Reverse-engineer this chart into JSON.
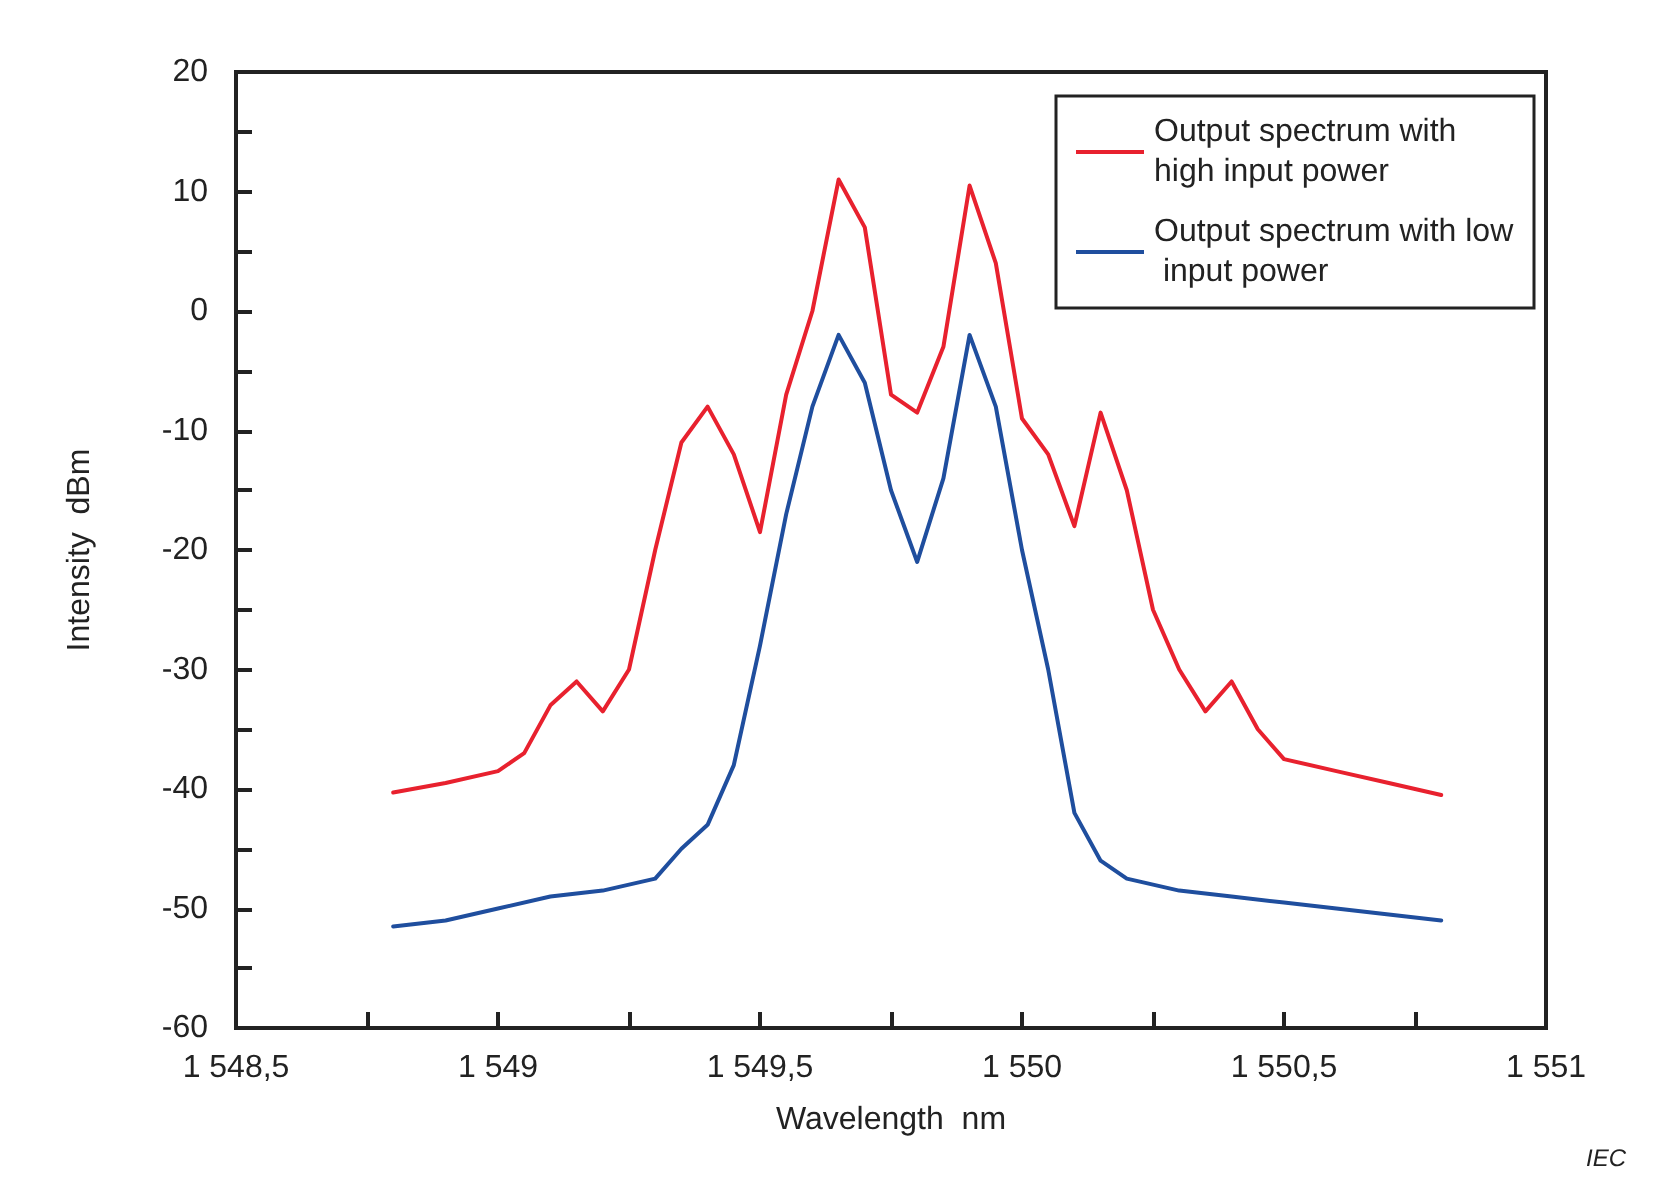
{
  "chart_data": {
    "type": "line",
    "xlabel": "Wavelength  nm",
    "ylabel": "Intensity  dBm",
    "annotations": [
      "IEC"
    ],
    "xlim": [
      1548.5,
      1551
    ],
    "ylim": [
      -60,
      20
    ],
    "xticks": [
      {
        "value": 1548.5,
        "label": "1 548,5"
      },
      {
        "value": 1548.75,
        "label": null
      },
      {
        "value": 1549,
        "label": "1 549"
      },
      {
        "value": 1549.25,
        "label": null
      },
      {
        "value": 1549.5,
        "label": "1 549,5"
      },
      {
        "value": 1549.75,
        "label": null
      },
      {
        "value": 1550,
        "label": "1 550"
      },
      {
        "value": 1550.25,
        "label": null
      },
      {
        "value": 1550.5,
        "label": "1 550,5"
      },
      {
        "value": 1550.75,
        "label": null
      },
      {
        "value": 1551,
        "label": "1 551"
      }
    ],
    "yticks": [
      -60,
      {
        "value": -55,
        "label": null
      },
      -50,
      {
        "value": -45,
        "label": null
      },
      -40,
      {
        "value": -35,
        "label": null
      },
      -30,
      {
        "value": -25,
        "label": null
      },
      -20,
      {
        "value": -15,
        "label": null
      },
      -10,
      {
        "value": -5,
        "label": null
      },
      0,
      {
        "value": 5,
        "label": null
      },
      10,
      {
        "value": 15,
        "label": null
      },
      20
    ],
    "grid": false,
    "legend": "top right",
    "marker": "none",
    "line_style": "solid",
    "series": [
      {
        "name": "Output spectrum with high input power",
        "color": "#e8212e",
        "x": [
          1548.8,
          1548.9,
          1549.0,
          1549.05,
          1549.1,
          1549.15,
          1549.2,
          1549.25,
          1549.3,
          1549.35,
          1549.4,
          1549.45,
          1549.5,
          1549.55,
          1549.6,
          1549.65,
          1549.7,
          1549.75,
          1549.8,
          1549.85,
          1549.9,
          1549.95,
          1550.0,
          1550.05,
          1550.1,
          1550.15,
          1550.2,
          1550.25,
          1550.3,
          1550.35,
          1550.4,
          1550.45,
          1550.5,
          1550.6,
          1550.7,
          1550.8
        ],
        "values": [
          -40.3,
          -39.5,
          -38.5,
          -37,
          -33,
          -31,
          -33.5,
          -30,
          -20,
          -11,
          -8,
          -12,
          -18.5,
          -7,
          0,
          11,
          7,
          -7,
          -8.5,
          -3,
          10.5,
          4,
          -9,
          -12,
          -18,
          -8.5,
          -15,
          -25,
          -30,
          -33.5,
          -31,
          -35,
          -37.5,
          -38.5,
          -39.5,
          -40.5
        ]
      },
      {
        "name": "Output spectrum with low input power",
        "color": "#1f4e9e",
        "x": [
          1548.8,
          1548.9,
          1549.0,
          1549.1,
          1549.2,
          1549.3,
          1549.35,
          1549.4,
          1549.45,
          1549.5,
          1549.55,
          1549.6,
          1549.65,
          1549.7,
          1549.75,
          1549.8,
          1549.85,
          1549.9,
          1549.95,
          1550.0,
          1550.05,
          1550.1,
          1550.15,
          1550.2,
          1550.3,
          1550.4,
          1550.5,
          1550.6,
          1550.7,
          1550.8
        ],
        "values": [
          -51.5,
          -51,
          -50,
          -49,
          -48.5,
          -47.5,
          -45,
          -43,
          -38,
          -28,
          -17,
          -8,
          -2,
          -6,
          -15,
          -21,
          -14,
          -2,
          -8,
          -20,
          -30,
          -42,
          -46,
          -47.5,
          -48.5,
          -49,
          -49.5,
          -50,
          -50.5,
          -51
        ]
      }
    ]
  }
}
